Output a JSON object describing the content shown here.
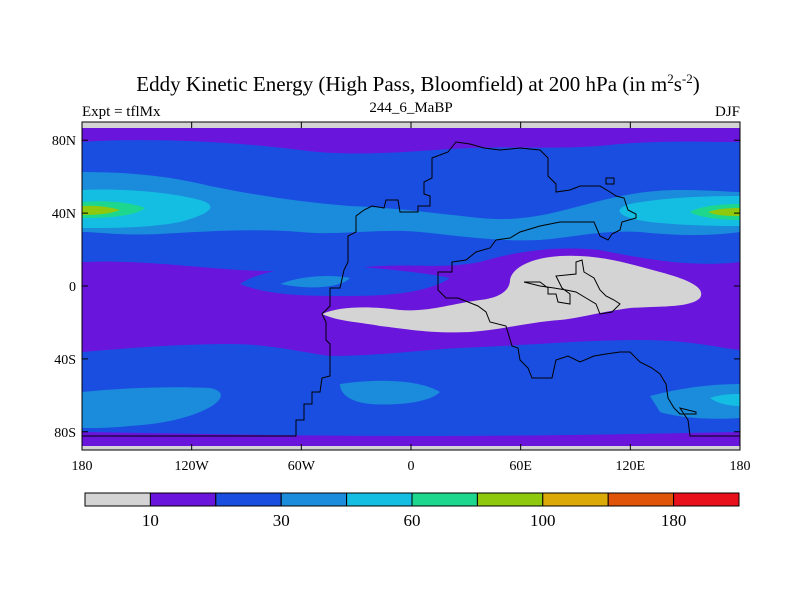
{
  "chart_data": {
    "type": "contour-map",
    "title_main": "Eddy Kinetic Energy (High Pass, Bloomfield) at 200 hPa (in m",
    "title_sup1": "2",
    "title_mid": "s",
    "title_sup2": "-2",
    "title_close": ")",
    "left_label": "Expt = tflMx",
    "center_label": "244_6_MaBP",
    "right_label": "DJF",
    "x_ticks": [
      "180",
      "120W",
      "60W",
      "0",
      "60E",
      "120E",
      "180"
    ],
    "y_ticks": [
      "80N",
      "40N",
      "0",
      "40S",
      "80S"
    ],
    "xlim": [
      -180,
      180
    ],
    "ylim": [
      -90,
      90
    ],
    "colorbar": {
      "colors": [
        "#d4d4d4",
        "#6a15dc",
        "#1a4ee0",
        "#1b8bdc",
        "#14bee2",
        "#1ed78e",
        "#8ec90e",
        "#dcaa08",
        "#e0540a",
        "#e8101a"
      ],
      "labels": [
        "10",
        "30",
        "60",
        "100",
        "180"
      ]
    },
    "palette": {
      "background_level": "#6a15dc",
      "gray_region": "#d4d4d4"
    }
  }
}
